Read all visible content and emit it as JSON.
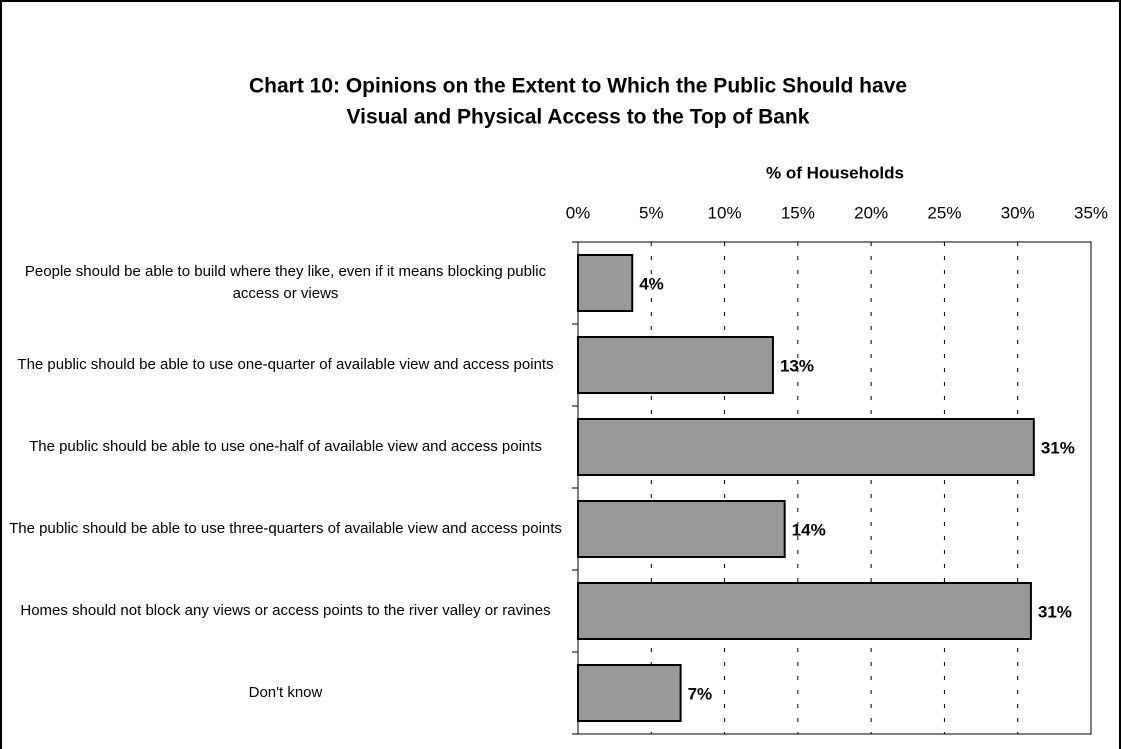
{
  "chart_data": {
    "type": "bar",
    "orientation": "horizontal",
    "title": [
      "Chart 10: Opinions on the Extent to Which the Public Should have",
      "Visual and Physical Access to the Top of Bank"
    ],
    "x_axis_label": "% of Households",
    "categories": [
      "People should be able to build where they like, even if it means blocking public access or views",
      "The public should be able to use one-quarter of available view and access points",
      "The public should be able to use one-half of available view and access points",
      "The public should be able to use three-quarters of available view and access points",
      "Homes should not block any views or access points to the river valley or ravines",
      "Don't know"
    ],
    "values": [
      3.7,
      13.3,
      31.1,
      14.1,
      30.9,
      7.0
    ],
    "value_labels": [
      "4%",
      "13%",
      "31%",
      "14%",
      "31%",
      "7%"
    ],
    "color": "#999999",
    "xlim": [
      0,
      35
    ],
    "xticks": [
      {
        "value": 0,
        "label": "0%"
      },
      {
        "value": 5,
        "label": "5%"
      },
      {
        "value": 10,
        "label": "10%"
      },
      {
        "value": 15,
        "label": "15%"
      },
      {
        "value": 20,
        "label": "20%"
      },
      {
        "value": 25,
        "label": "25%"
      },
      {
        "value": 30,
        "label": "30%"
      },
      {
        "value": 35,
        "label": "35%"
      }
    ],
    "grid": true
  }
}
